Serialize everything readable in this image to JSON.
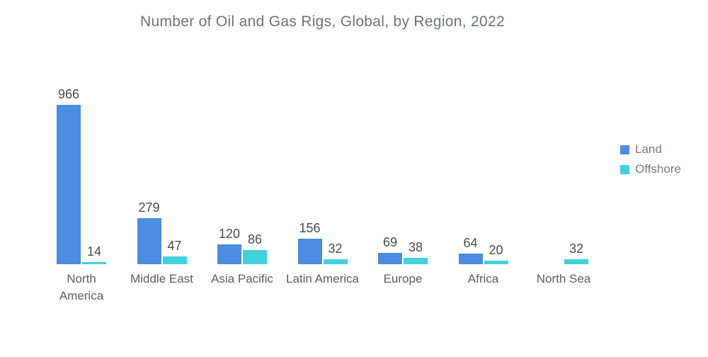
{
  "title": "Number of Oil and Gas Rigs, Global, by Region, 2022",
  "legend": {
    "items": [
      {
        "label": "Land",
        "color": "#4A8DE2"
      },
      {
        "label": "Offshore",
        "color": "#41D2DC"
      }
    ]
  },
  "colors": {
    "land": "#4A8DE2",
    "offshore": "#41D2DC",
    "title_text": "#6F7377",
    "value_text": "#494C50",
    "category_text": "#5C6064",
    "legend_text": "#797C80",
    "background": "#FFFFFF"
  },
  "chart_data": {
    "type": "bar",
    "title": "Number of Oil and Gas Rigs, Global, by Region, 2022",
    "categories": [
      "North America",
      "Middle East",
      "Asia Pacific",
      "Latin America",
      "Europe",
      "Africa",
      "North Sea"
    ],
    "series": [
      {
        "name": "Land",
        "color": "#4A8DE2",
        "values": [
          966,
          279,
          120,
          156,
          69,
          64,
          null
        ]
      },
      {
        "name": "Offshore",
        "color": "#41D2DC",
        "values": [
          14,
          47,
          86,
          32,
          38,
          20,
          32
        ]
      }
    ],
    "ylim": [
      0,
      1000
    ],
    "grid": false,
    "y_axis_visible": false,
    "value_labels": true,
    "legend_position": "right"
  }
}
